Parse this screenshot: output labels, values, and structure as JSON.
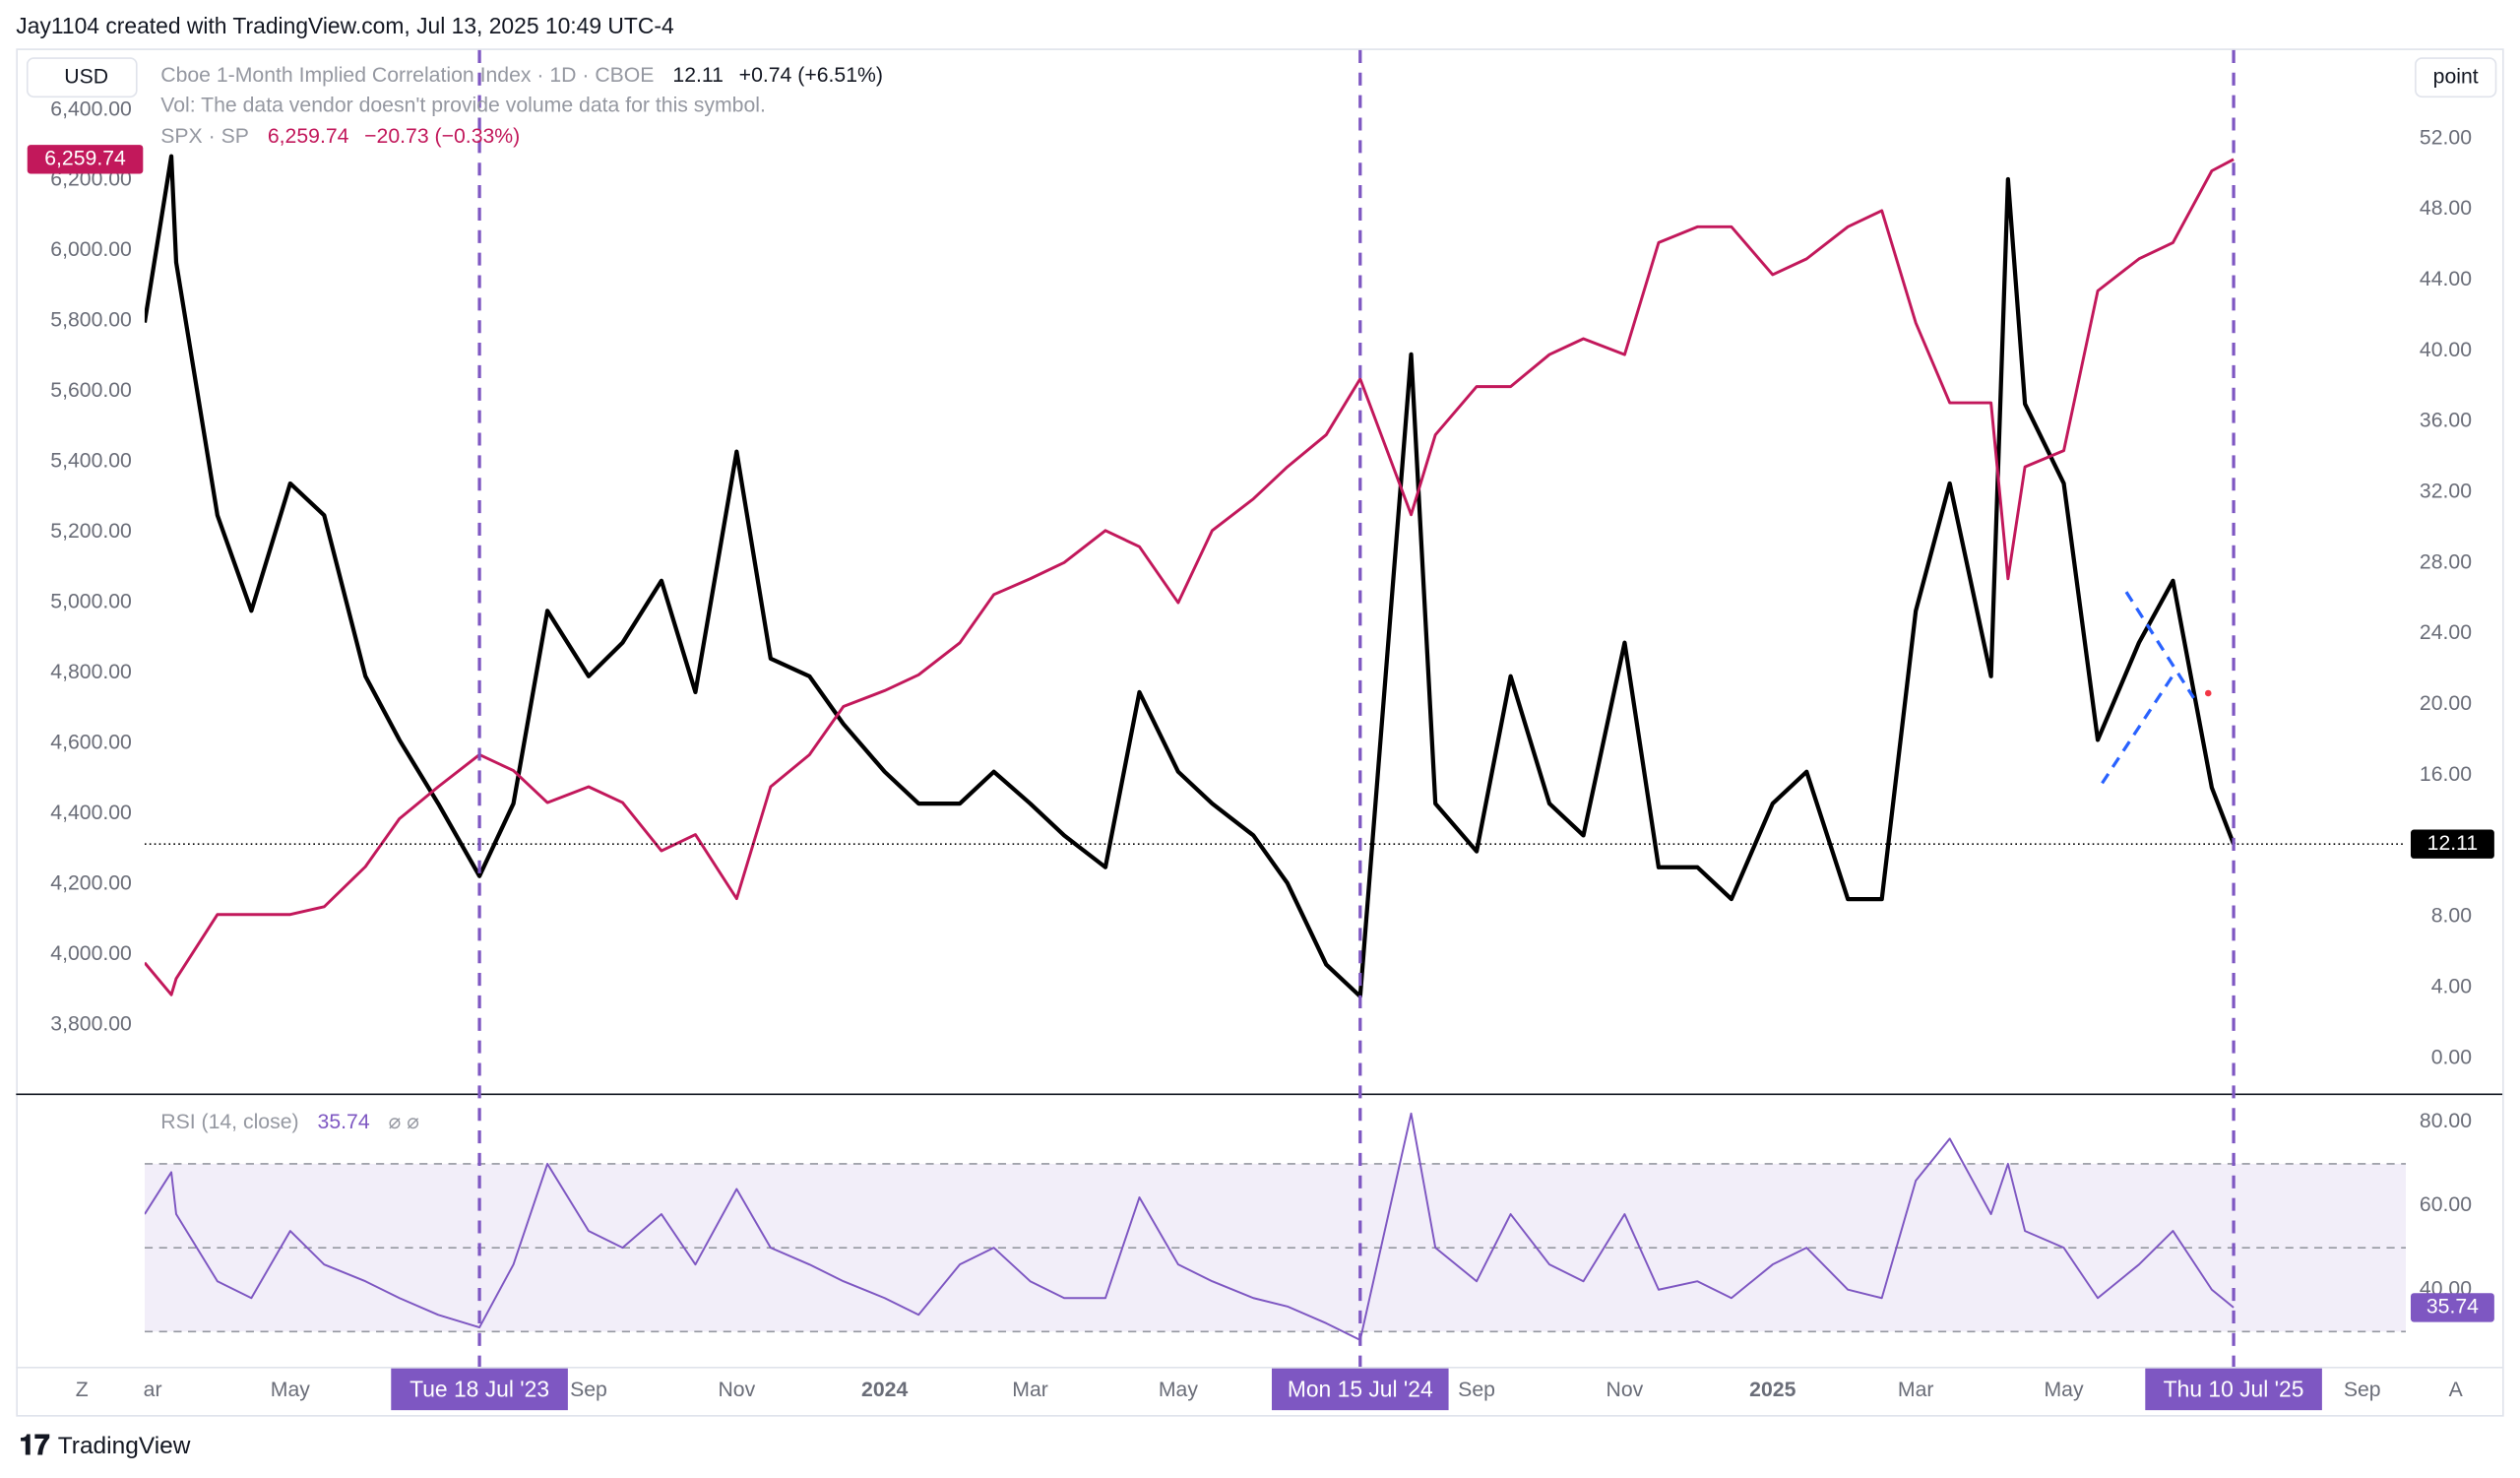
{
  "header": "Jay1104 created with TradingView.com, Jul 13, 2025 10:49 UTC-4",
  "footer": "TradingView",
  "axis_buttons": [
    "Z",
    "A"
  ],
  "chart_data": [
    {
      "type": "line",
      "left_unit": "USD",
      "right_unit": "point",
      "note": "Vol: The data vendor doesn't provide volume data for this symbol.",
      "x": [
        "2023-03-02",
        "2023-03-13",
        "2023-03-15",
        "2023-04-01",
        "2023-04-15",
        "2023-05-01",
        "2023-05-15",
        "2023-06-01",
        "2023-06-15",
        "2023-07-01",
        "2023-07-18",
        "2023-08-01",
        "2023-08-15",
        "2023-09-01",
        "2023-09-15",
        "2023-10-01",
        "2023-10-15",
        "2023-11-01",
        "2023-11-15",
        "2023-12-01",
        "2023-12-15",
        "2024-01-01",
        "2024-01-15",
        "2024-02-01",
        "2024-02-15",
        "2024-03-01",
        "2024-03-15",
        "2024-04-01",
        "2024-04-15",
        "2024-05-01",
        "2024-05-15",
        "2024-06-01",
        "2024-06-15",
        "2024-07-01",
        "2024-07-15",
        "2024-08-05",
        "2024-08-15",
        "2024-09-01",
        "2024-09-15",
        "2024-10-01",
        "2024-10-15",
        "2024-11-01",
        "2024-11-15",
        "2024-12-01",
        "2024-12-15",
        "2025-01-01",
        "2025-01-15",
        "2025-02-01",
        "2025-02-15",
        "2025-03-01",
        "2025-03-15",
        "2025-04-01",
        "2025-04-08",
        "2025-04-15",
        "2025-05-01",
        "2025-05-15",
        "2025-06-01",
        "2025-06-15",
        "2025-07-01",
        "2025-07-10"
      ],
      "xlim": [
        "2023-03-02",
        "2025-09-19"
      ],
      "xticks": [
        {
          "value": "2023-03-01",
          "label": "ar"
        },
        {
          "value": "2023-05-01",
          "label": "May"
        },
        {
          "value": "2023-09-01",
          "label": "Sep"
        },
        {
          "value": "2023-11-01",
          "label": "Nov"
        },
        {
          "value": "2024-01-01",
          "label": "2024"
        },
        {
          "value": "2024-03-01",
          "label": "Mar"
        },
        {
          "value": "2024-05-01",
          "label": "May"
        },
        {
          "value": "2024-09-01",
          "label": "Sep"
        },
        {
          "value": "2024-11-01",
          "label": "Nov"
        },
        {
          "value": "2025-01-01",
          "label": "2025"
        },
        {
          "value": "2025-03-01",
          "label": "Mar"
        },
        {
          "value": "2025-05-01",
          "label": "May"
        },
        {
          "value": "2025-09-01",
          "label": "Sep"
        }
      ],
      "annotations": [
        {
          "x": "2023-07-18",
          "label": "Tue 18 Jul '23"
        },
        {
          "x": "2024-07-15",
          "label": "Mon 15 Jul '24"
        },
        {
          "x": "2025-07-10",
          "label": "Thu 10 Jul '25"
        }
      ],
      "annotation_color": "#7e57c2",
      "ylim": [
        3610,
        6570
      ],
      "yticks": [
        {
          "value": 3800,
          "label": "3,800.00"
        },
        {
          "value": 4000,
          "label": "4,000.00"
        },
        {
          "value": 4200,
          "label": "4,200.00"
        },
        {
          "value": 4400,
          "label": "4,400.00"
        },
        {
          "value": 4600,
          "label": "4,600.00"
        },
        {
          "value": 4800,
          "label": "4,800.00"
        },
        {
          "value": 5000,
          "label": "5,000.00"
        },
        {
          "value": 5200,
          "label": "5,200.00"
        },
        {
          "value": 5400,
          "label": "5,400.00"
        },
        {
          "value": 5600,
          "label": "5,600.00"
        },
        {
          "value": 5800,
          "label": "5,800.00"
        },
        {
          "value": 6000,
          "label": "6,000.00"
        },
        {
          "value": 6200,
          "label": "6,200.00"
        },
        {
          "value": 6400,
          "label": "6,400.00"
        }
      ],
      "y2lim": [
        -1.9,
        57
      ],
      "y2ticks": [
        {
          "value": 0,
          "label": "0.00"
        },
        {
          "value": 4,
          "label": "4.00"
        },
        {
          "value": 8,
          "label": "8.00"
        },
        {
          "value": 12,
          "label": "12.00"
        },
        {
          "value": 16,
          "label": "16.00"
        },
        {
          "value": 20,
          "label": "20.00"
        },
        {
          "value": 24,
          "label": "24.00"
        },
        {
          "value": 28,
          "label": "28.00"
        },
        {
          "value": 32,
          "label": "32.00"
        },
        {
          "value": 36,
          "label": "36.00"
        },
        {
          "value": 40,
          "label": "40.00"
        },
        {
          "value": 44,
          "label": "44.00"
        },
        {
          "value": 48,
          "label": "48.00"
        },
        {
          "value": 52,
          "label": "52.00"
        }
      ],
      "series": [
        {
          "name": "Cboe 1-Month Implied Correlation Index · 1D · CBOE",
          "color": "#000000",
          "axis": "y2",
          "change": "+0.74 (+6.51%)",
          "values": [
            41.6,
            51,
            45,
            30.7,
            25.3,
            32.5,
            30.7,
            21.6,
            18,
            14.4,
            10.3,
            14.4,
            25.3,
            21.6,
            23.5,
            27,
            20.7,
            34.3,
            22.6,
            21.6,
            18.9,
            16.2,
            14.4,
            14.4,
            16.2,
            14.4,
            12.6,
            10.8,
            20.7,
            16.2,
            14.4,
            12.6,
            9.9,
            5.3,
            3.5,
            39.8,
            14.4,
            11.7,
            21.6,
            14.4,
            12.6,
            23.5,
            10.8,
            10.8,
            9,
            14.4,
            16.2,
            9,
            9,
            25.3,
            32.5,
            21.6,
            49.7,
            37,
            32.5,
            18,
            23.5,
            27,
            15.3,
            12.11
          ]
        },
        {
          "name": "SPX · SP",
          "color": "#c2185b",
          "change": "−20.73 (−0.33%)",
          "last_label": "6,259.74",
          "values": [
            3977,
            3886,
            3932,
            4114,
            4114,
            4114,
            4136,
            4250,
            4386,
            4477,
            4568,
            4523,
            4432,
            4477,
            4432,
            4295,
            4341,
            4159,
            4477,
            4568,
            4705,
            4750,
            4795,
            4886,
            5023,
            5068,
            5114,
            5205,
            5159,
            5000,
            5205,
            5295,
            5386,
            5477,
            5636,
            5250,
            5477,
            5614,
            5614,
            5705,
            5750,
            5705,
            6023,
            6068,
            6068,
            5932,
            5977,
            6068,
            6114,
            5795,
            5568,
            5568,
            5068,
            5386,
            5432,
            5886,
            5977,
            6023,
            6227,
            6259.74
          ]
        }
      ]
    },
    {
      "type": "line",
      "title": "RSI (14, close)",
      "color": "#7e57c2",
      "values": [
        58,
        68,
        58,
        42,
        38,
        54,
        46,
        42,
        38,
        34,
        31,
        46,
        70,
        54,
        50,
        58,
        46,
        64,
        50,
        46,
        42,
        38,
        34,
        46,
        50,
        42,
        38,
        38,
        62,
        46,
        42,
        38,
        36,
        32,
        28,
        82,
        50,
        42,
        58,
        46,
        42,
        58,
        40,
        42,
        38,
        46,
        50,
        40,
        38,
        66,
        76,
        58,
        70,
        54,
        50,
        38,
        46,
        54,
        40,
        35.74
      ],
      "ylim": [
        22,
        86
      ],
      "yticks": [
        {
          "value": 40,
          "label": "40.00"
        },
        {
          "value": 60,
          "label": "60.00"
        },
        {
          "value": 80,
          "label": "80.00"
        }
      ],
      "levels": [
        70,
        50,
        30
      ]
    }
  ]
}
